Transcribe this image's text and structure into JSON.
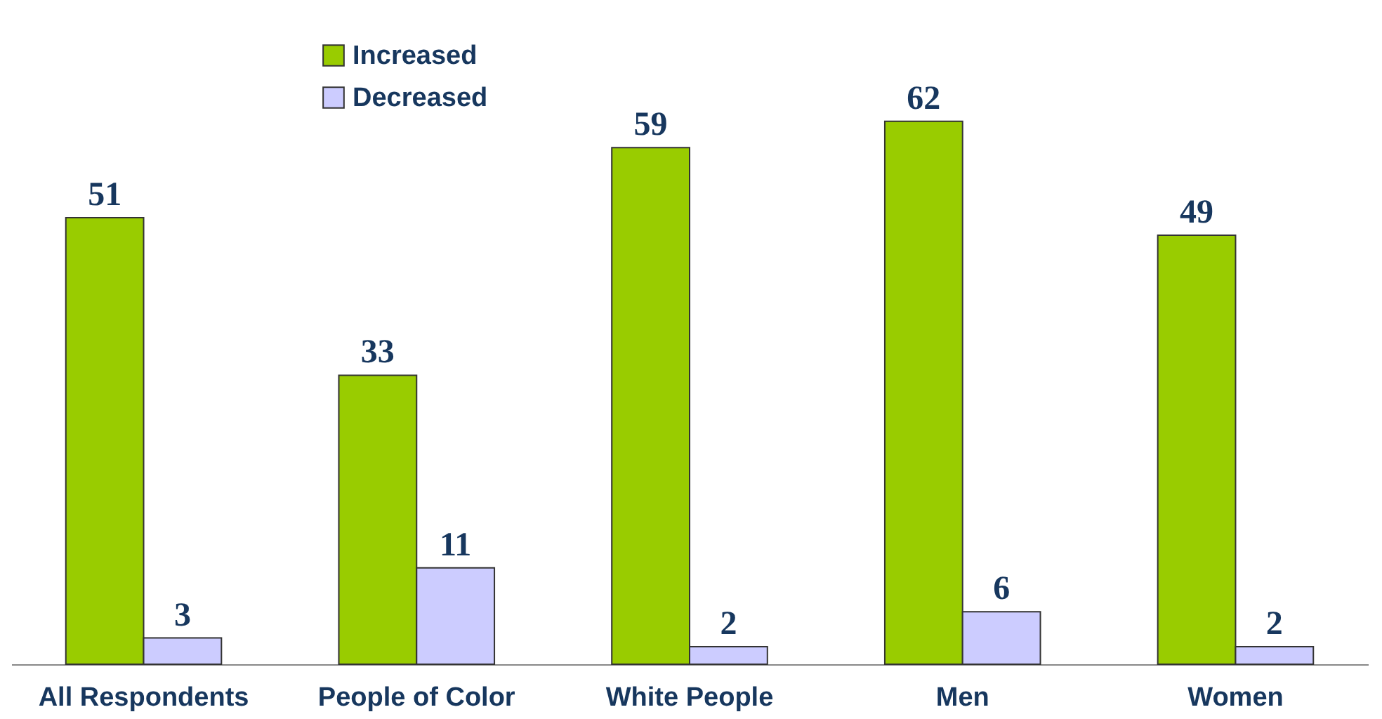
{
  "chart_data": {
    "type": "bar",
    "categories": [
      "All Respondents",
      "People of Color",
      "White People",
      "Men",
      "Women"
    ],
    "series": [
      {
        "name": "Increased",
        "color": "#99cc00",
        "values": [
          51,
          33,
          59,
          62,
          49
        ]
      },
      {
        "name": "Decreased",
        "color": "#ccccff",
        "values": [
          3,
          11,
          2,
          6,
          2
        ]
      }
    ],
    "data_labels": true,
    "legend": "top"
  }
}
